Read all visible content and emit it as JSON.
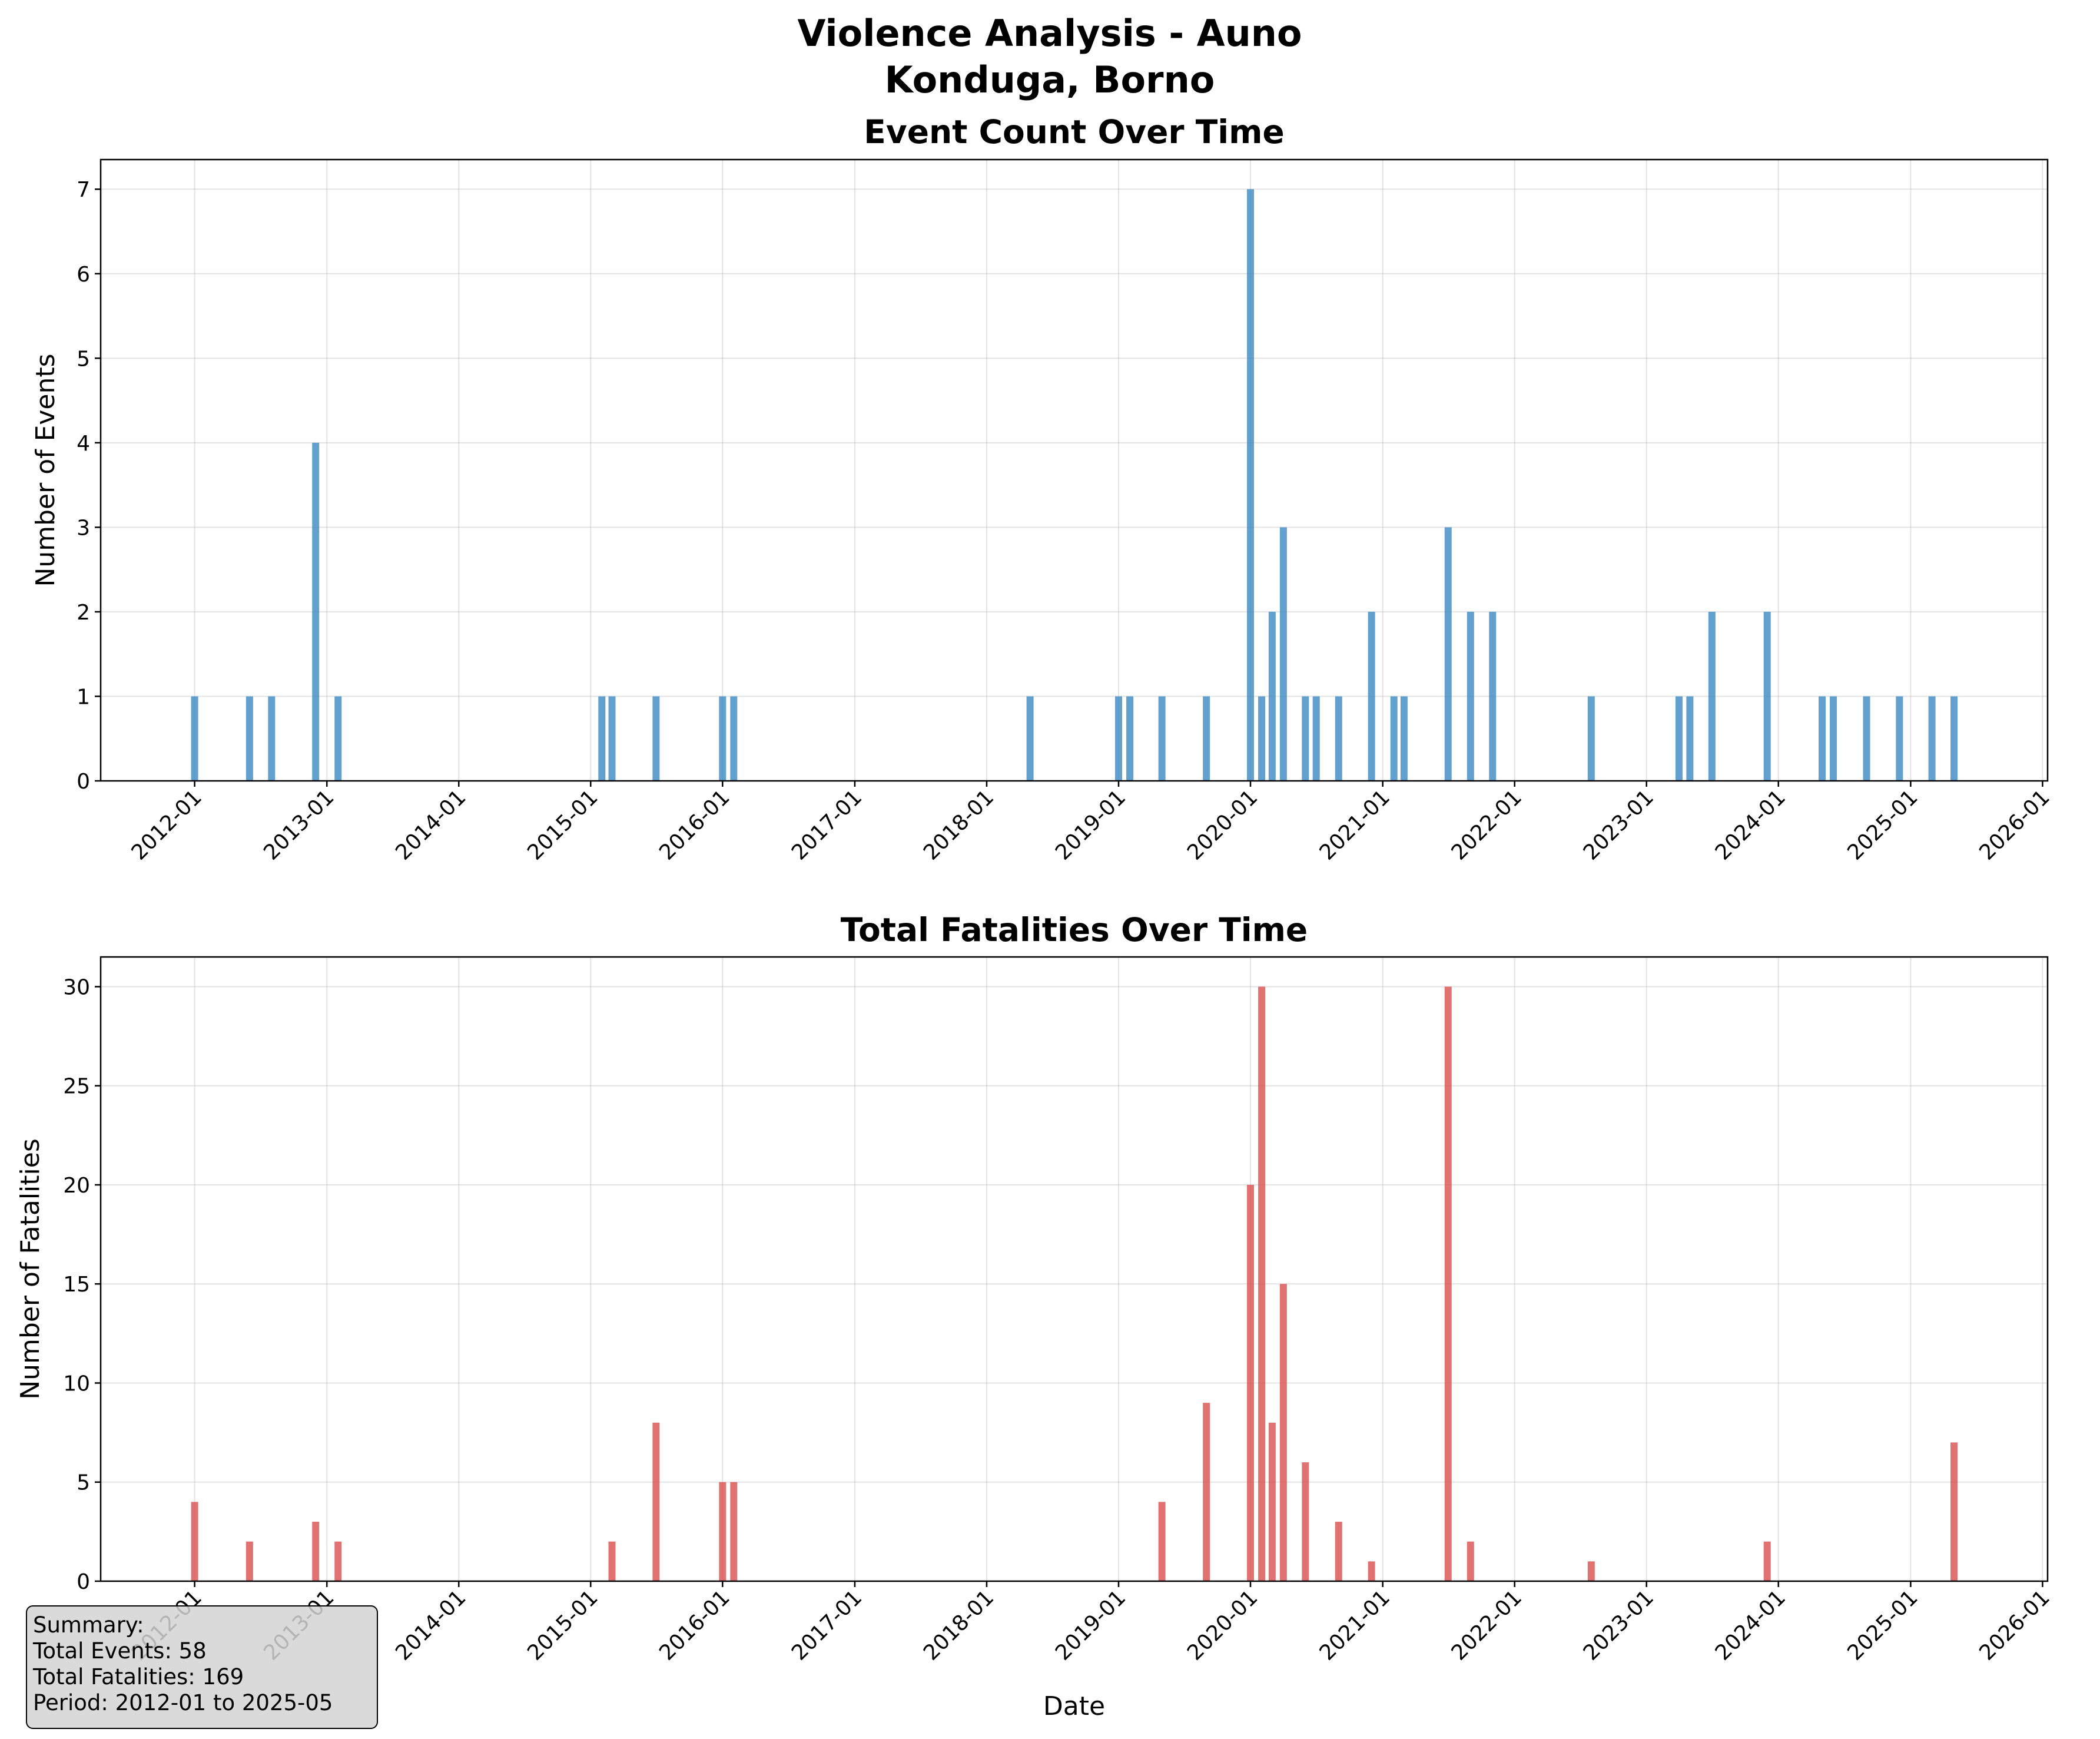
{
  "figure": {
    "title_line1": "Violence Analysis - Auno",
    "title_line2": "Konduga, Borno"
  },
  "summary": {
    "heading": "Summary:",
    "total_events": "Total Events: 58",
    "total_fatalities": "Total Fatalities: 169",
    "period": "Period: 2012-01 to 2025-05"
  },
  "chart_data": [
    {
      "type": "bar",
      "title": "Event Count Over Time",
      "xlabel": "",
      "ylabel": "Number of Events",
      "x_type": "date",
      "xlim": [
        "2011-04-16",
        "2026-01-15"
      ],
      "ylim": [
        0,
        7.35
      ],
      "x_ticks": [
        "2012-01",
        "2013-01",
        "2014-01",
        "2015-01",
        "2016-01",
        "2017-01",
        "2018-01",
        "2019-01",
        "2020-01",
        "2021-01",
        "2022-01",
        "2023-01",
        "2024-01",
        "2025-01",
        "2026-01"
      ],
      "y_ticks": [
        0,
        1,
        2,
        3,
        4,
        5,
        6,
        7
      ],
      "grid": true,
      "color": "#3b88c1",
      "x": [
        "2012-01",
        "2012-06",
        "2012-08",
        "2012-12",
        "2013-02",
        "2015-02",
        "2015-03",
        "2015-07",
        "2016-01",
        "2016-02",
        "2018-05",
        "2019-01",
        "2019-02",
        "2019-05",
        "2019-09",
        "2020-01",
        "2020-02",
        "2020-03",
        "2020-04",
        "2020-06",
        "2020-07",
        "2020-09",
        "2020-12",
        "2021-02",
        "2021-03",
        "2021-07",
        "2021-09",
        "2021-11",
        "2022-08",
        "2023-04",
        "2023-05",
        "2023-07",
        "2023-12",
        "2024-05",
        "2024-06",
        "2024-09",
        "2024-12",
        "2025-03",
        "2025-05"
      ],
      "values": [
        1,
        1,
        1,
        4,
        1,
        1,
        1,
        1,
        1,
        1,
        1,
        1,
        1,
        1,
        1,
        7,
        1,
        2,
        3,
        1,
        1,
        1,
        2,
        1,
        1,
        3,
        2,
        2,
        1,
        1,
        1,
        2,
        2,
        1,
        1,
        1,
        1,
        1,
        1
      ]
    },
    {
      "type": "bar",
      "title": "Total Fatalities Over Time",
      "xlabel": "Date",
      "ylabel": "Number of Fatalities",
      "x_type": "date",
      "xlim": [
        "2011-04-16",
        "2026-01-15"
      ],
      "ylim": [
        0,
        31.5
      ],
      "x_ticks": [
        "2012-01",
        "2013-01",
        "2014-01",
        "2015-01",
        "2016-01",
        "2017-01",
        "2018-01",
        "2019-01",
        "2020-01",
        "2021-01",
        "2022-01",
        "2023-01",
        "2024-01",
        "2025-01",
        "2026-01"
      ],
      "y_ticks": [
        0,
        5,
        10,
        15,
        20,
        25,
        30
      ],
      "grid": true,
      "color": "#d94f4f",
      "x": [
        "2012-01",
        "2012-06",
        "2012-12",
        "2013-02",
        "2015-03",
        "2015-07",
        "2016-01",
        "2016-02",
        "2019-05",
        "2019-09",
        "2020-01",
        "2020-02",
        "2020-03",
        "2020-04",
        "2020-06",
        "2020-09",
        "2020-12",
        "2021-07",
        "2021-09",
        "2022-08",
        "2023-12",
        "2025-05"
      ],
      "values": [
        4,
        2,
        3,
        2,
        2,
        8,
        5,
        5,
        4,
        9,
        20,
        30,
        8,
        15,
        6,
        3,
        1,
        30,
        2,
        1,
        2,
        7
      ]
    }
  ]
}
